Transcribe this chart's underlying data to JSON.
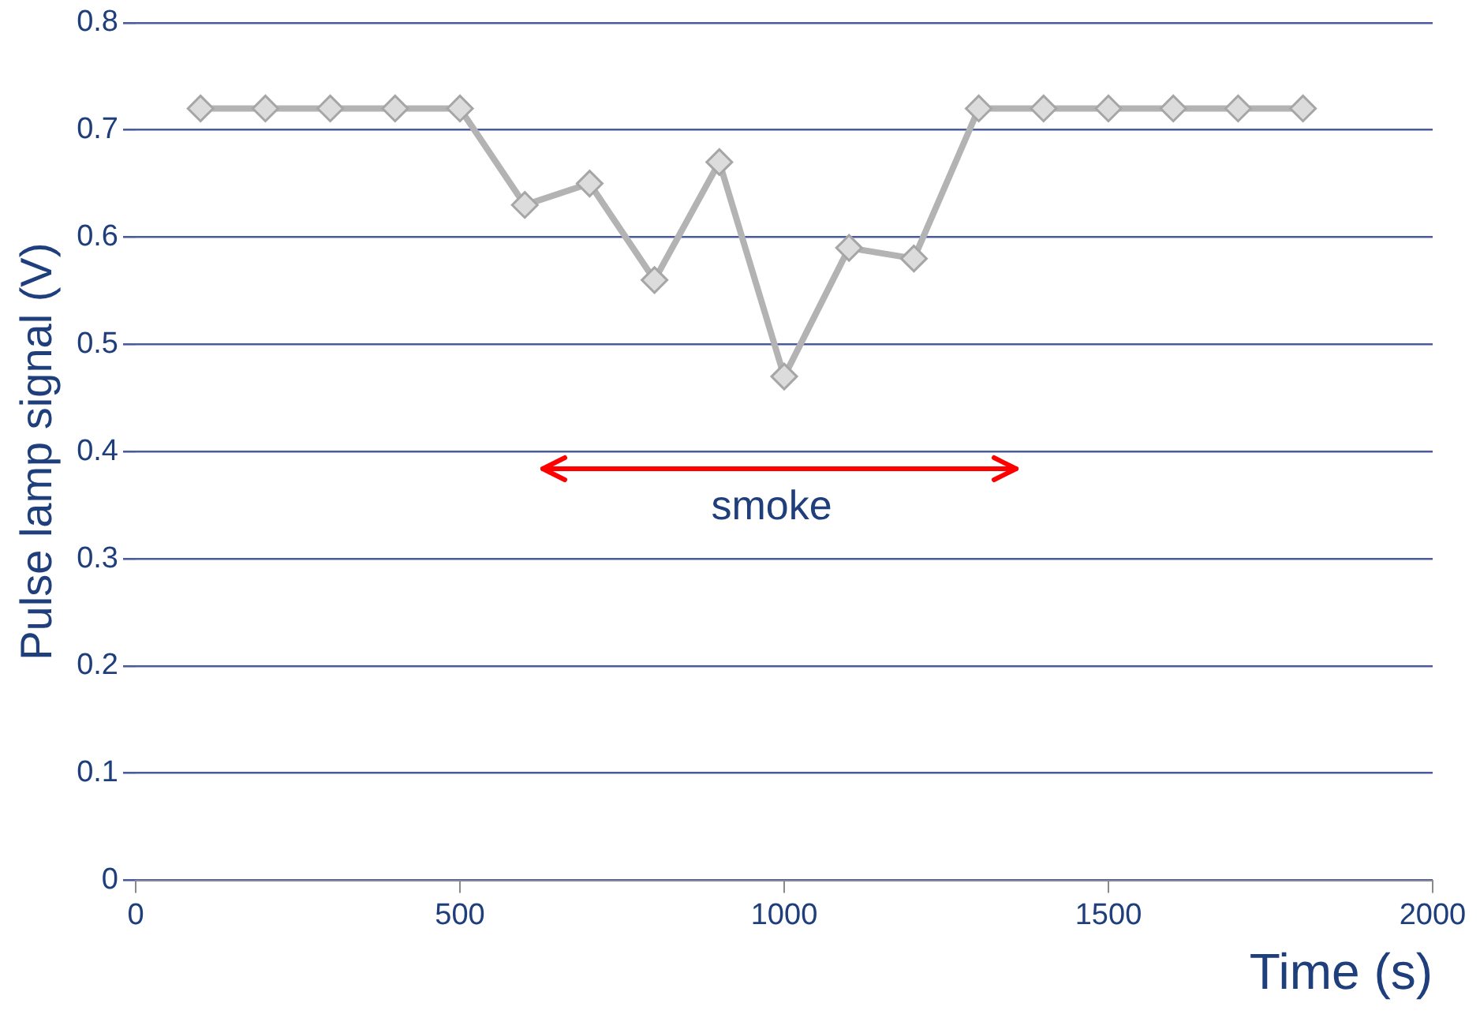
{
  "chart_data": {
    "type": "line",
    "xlabel": "Time (s)",
    "ylabel": "Pulse lamp signal (V)",
    "x": [
      100,
      200,
      300,
      400,
      500,
      600,
      700,
      800,
      900,
      1000,
      1100,
      1200,
      1300,
      1400,
      1500,
      1600,
      1700,
      1800
    ],
    "series": [
      {
        "color": "#b3b3b3",
        "values": [
          0.72,
          0.72,
          0.72,
          0.72,
          0.72,
          0.63,
          0.65,
          0.56,
          0.67,
          0.47,
          0.59,
          0.58,
          0.72,
          0.72,
          0.72,
          0.72,
          0.72,
          0.72
        ]
      }
    ],
    "xlim": [
      0,
      2000
    ],
    "xticks": [
      0,
      500,
      1000,
      1500,
      2000
    ],
    "ylim": [
      0,
      0.8
    ],
    "yticks": [
      0,
      0.1,
      0.2,
      0.3,
      0.4,
      0.5,
      0.6,
      0.7,
      0.8
    ],
    "grid": "y",
    "marker": "diamond",
    "line_style": "solid",
    "annotations": [
      "smoke"
    ]
  }
}
